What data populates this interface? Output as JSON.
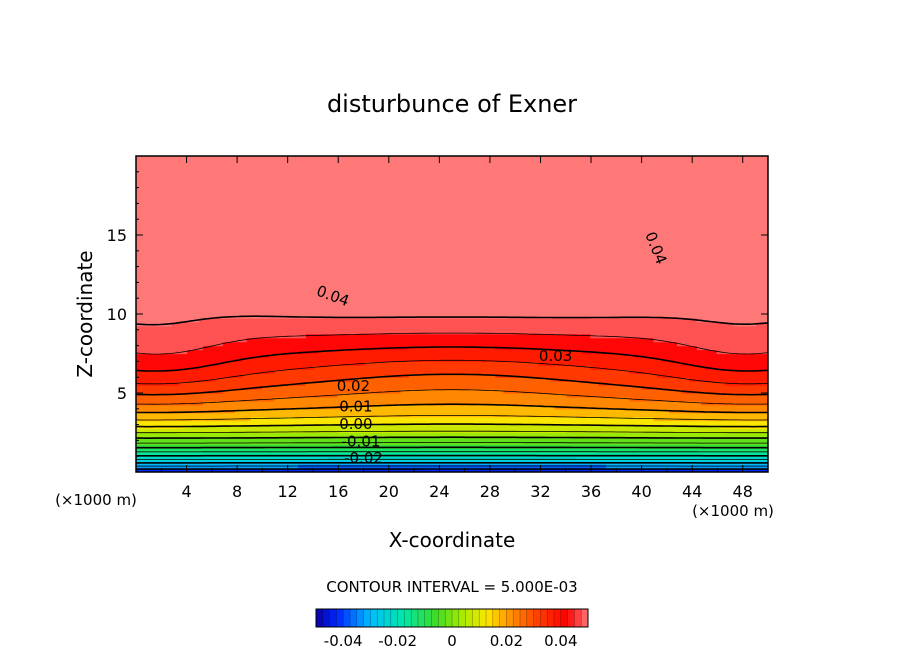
{
  "chart_data": {
    "type": "heatmap",
    "subtype": "filled-contour",
    "title": "disturbunce of Exner",
    "xlabel": "X-coordinate",
    "ylabel": "Z-coordinate",
    "x_unit_left": "(×1000 m)",
    "x_unit_right": "(×1000 m)",
    "xlim": [
      0,
      50
    ],
    "ylim": [
      0,
      20
    ],
    "x_ticks": [
      4,
      8,
      12,
      16,
      20,
      24,
      28,
      32,
      36,
      40,
      44,
      48
    ],
    "y_ticks": [
      5,
      10,
      15
    ],
    "grid": false,
    "contour_interval_text": "CONTOUR INTERVAL = 5.000E-03",
    "contour_interval": 0.005,
    "value_range": [
      -0.05,
      0.05
    ],
    "field_summary": {
      "max_region_center": [
        26,
        13.5
      ],
      "max_value_approx": 0.047,
      "min_value_at_bottom": -0.045,
      "negative_contours_dashed": true
    },
    "contour_labels": [
      {
        "text": "0.04",
        "x": 15.6,
        "y": 11.2
      },
      {
        "text": "0.04",
        "x": 41.2,
        "y": 14.2
      },
      {
        "text": "0.03",
        "x": 33.2,
        "y": 7.4
      },
      {
        "text": "0.02",
        "x": 17.2,
        "y": 5.5
      },
      {
        "text": "0.01",
        "x": 17.4,
        "y": 4.2
      },
      {
        "text": "0.00",
        "x": 17.4,
        "y": 3.1
      },
      {
        "text": "-0.01",
        "x": 17.8,
        "y": 2.0
      },
      {
        "text": "-0.02",
        "x": 18.0,
        "y": 0.95
      }
    ],
    "colorbar": {
      "ticks": [
        -0.04,
        -0.02,
        0,
        0.02,
        0.04
      ],
      "tick_labels": [
        "-0.04",
        "-0.02",
        "0",
        "0.02",
        "0.04"
      ]
    }
  }
}
